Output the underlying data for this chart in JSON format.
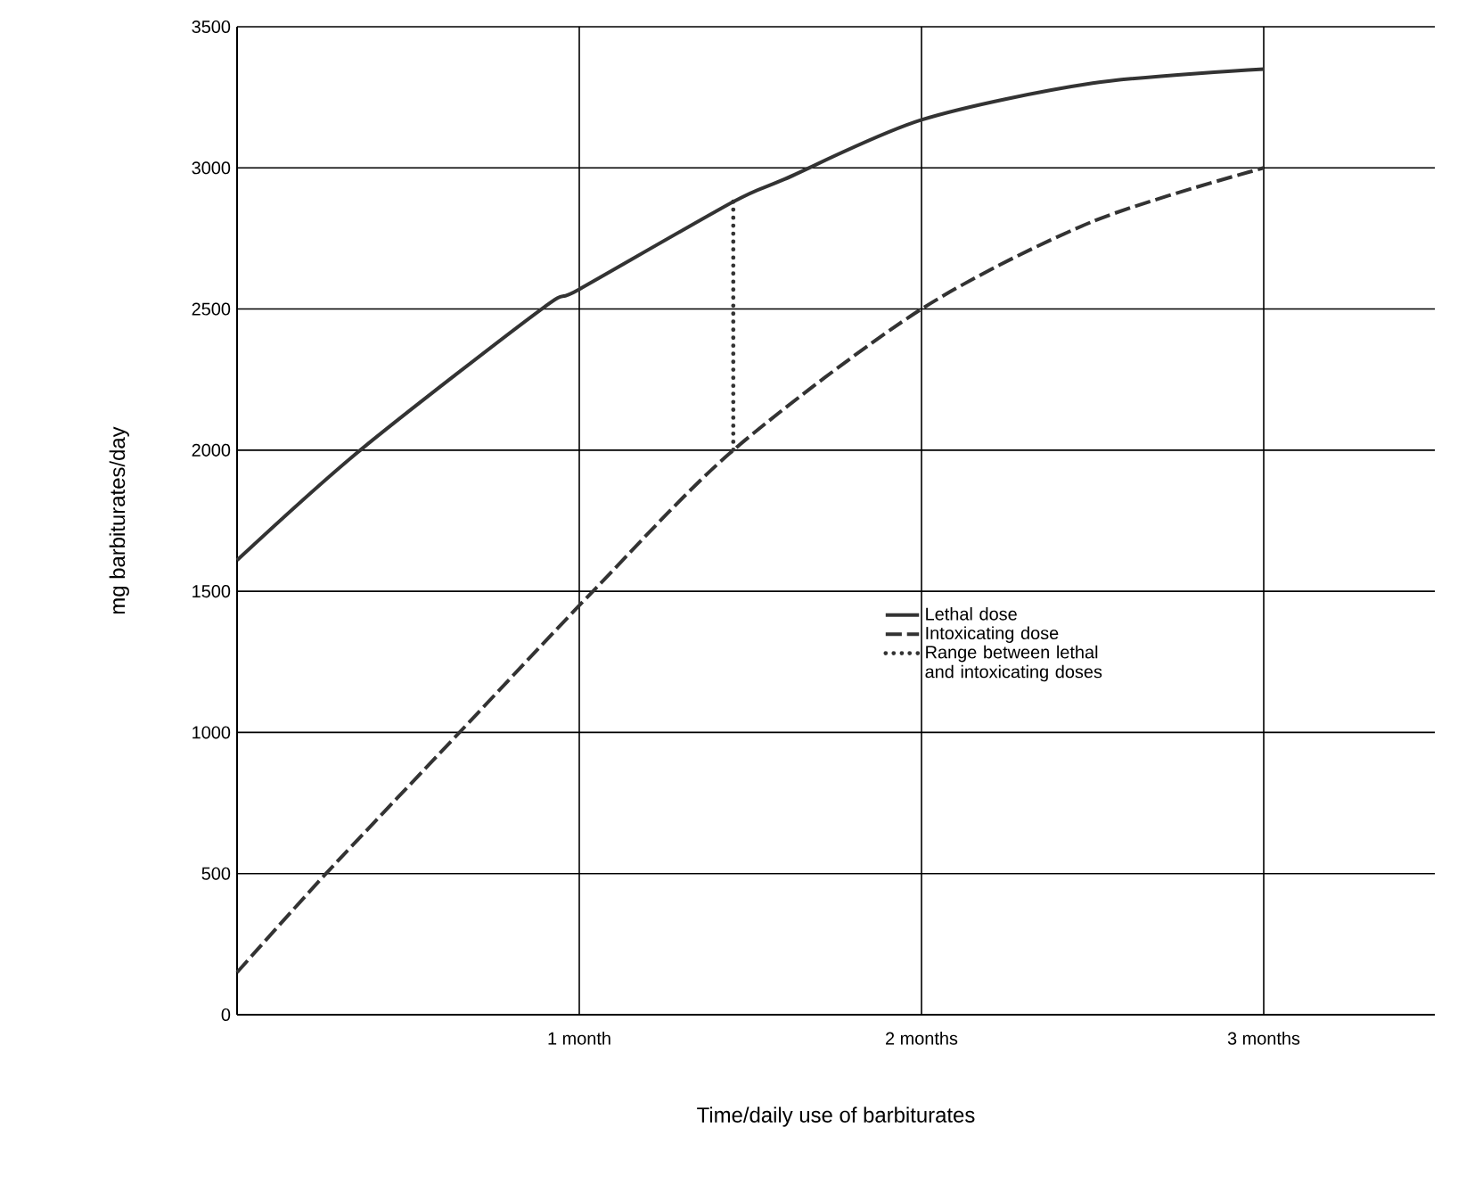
{
  "chart_data": {
    "type": "line",
    "xlabel": "Time/daily use of barbiturates",
    "ylabel": "mg barbiturates/day",
    "xlim": [
      0,
      3.5
    ],
    "ylim": [
      0,
      3500
    ],
    "xticks": [
      {
        "value": 1,
        "label": "1 month"
      },
      {
        "value": 2,
        "label": "2 months"
      },
      {
        "value": 3,
        "label": "3 months"
      }
    ],
    "yticks": [
      0,
      500,
      1000,
      1500,
      2000,
      2500,
      3000,
      3500
    ],
    "grid": true,
    "legend": "center",
    "series": [
      {
        "name": "Lethal dose",
        "color": "#333333",
        "line_style": "solid",
        "x": [
          0,
          0.36,
          0.89,
          1,
          1.45,
          1.6,
          2,
          2.5,
          3
        ],
        "values": [
          1610,
          2000,
          2500,
          2570,
          2880,
          2960,
          3170,
          3300,
          3350
        ]
      },
      {
        "name": "Intoxicating dose",
        "color": "#333333",
        "line_style": "dashed",
        "x": [
          0,
          0.26,
          0.65,
          1.04,
          1.45,
          2,
          2.5,
          3
        ],
        "values": [
          150,
          500,
          1000,
          1500,
          2000,
          2500,
          2810,
          3000
        ]
      },
      {
        "name": "Range between lethal and intoxicating doses",
        "color": "#333333",
        "line_style": "dotted",
        "x": [
          1.45,
          1.45
        ],
        "values": [
          2880,
          2000
        ]
      }
    ]
  }
}
